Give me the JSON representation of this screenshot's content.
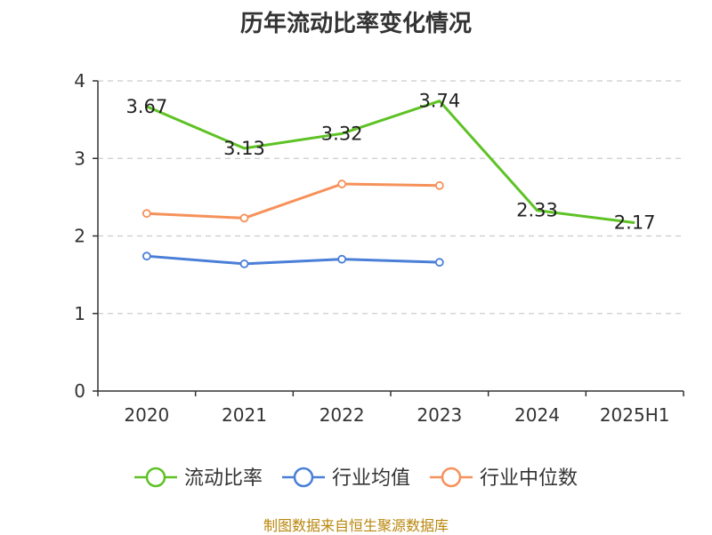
{
  "chart_data": {
    "type": "line",
    "title": "历年流动比率变化情况",
    "categories": [
      "2020",
      "2021",
      "2022",
      "2023",
      "2024",
      "2025H1"
    ],
    "ylim": [
      0,
      4
    ],
    "yticks": [
      0,
      1,
      2,
      3,
      4
    ],
    "grid": true,
    "legend_position": "bottom",
    "series": [
      {
        "name": "流动比率",
        "color": "#5ec225",
        "values": [
          3.67,
          3.13,
          3.32,
          3.74,
          2.33,
          2.17
        ],
        "labels": [
          "3.67",
          "3.13",
          "3.32",
          "3.74",
          "2.33",
          "2.17"
        ]
      },
      {
        "name": "行业均值",
        "color": "#4a7fd8",
        "values": [
          1.74,
          1.64,
          1.7,
          1.66,
          null,
          null
        ]
      },
      {
        "name": "行业中位数",
        "color": "#f6915a",
        "values": [
          2.29,
          2.23,
          2.67,
          2.65,
          null,
          null
        ]
      }
    ]
  },
  "footer": {
    "source": "制图数据来自恒生聚源数据库"
  }
}
